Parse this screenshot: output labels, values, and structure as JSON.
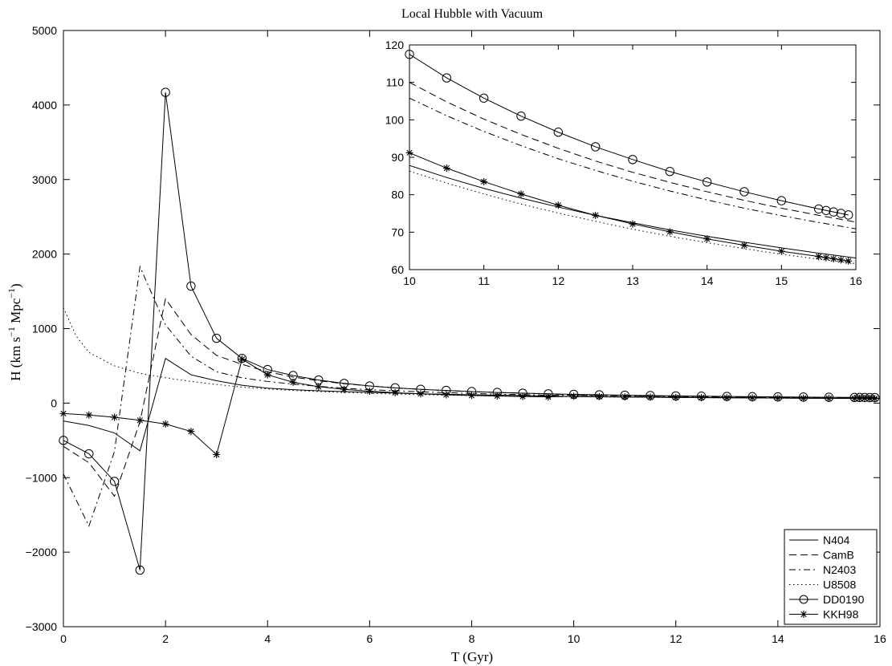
{
  "chart_data": [
    {
      "type": "line",
      "title": "Local Hubble with Vacuum",
      "xlabel": "T (Gyr)",
      "ylabel": "H (km s^-1 Mpc^-1)",
      "xlim": [
        0,
        16
      ],
      "ylim": [
        -3000,
        5000
      ],
      "xticks": [
        0,
        2,
        4,
        6,
        8,
        10,
        12,
        14,
        16
      ],
      "yticks": [
        -3000,
        -2000,
        -1000,
        0,
        1000,
        2000,
        3000,
        4000,
        5000
      ],
      "grid": false,
      "legend_position": "bottom-right",
      "series": [
        {
          "name": "N404",
          "style": "solid",
          "marker": "none",
          "x": [
            0,
            0.5,
            1,
            1.5,
            2,
            2.5,
            3,
            3.5,
            4,
            4.5,
            5,
            5.5,
            6,
            6.5,
            7,
            7.5,
            8,
            8.5,
            9,
            9.5,
            10,
            10.5,
            11,
            11.5,
            12,
            12.5,
            13,
            13.5,
            14,
            14.5,
            15,
            15.5,
            16
          ],
          "y": [
            -240,
            -300,
            -400,
            -640,
            600,
            380,
            300,
            240,
            200,
            180,
            165,
            155,
            145,
            135,
            125,
            118,
            112,
            106,
            101,
            96,
            88,
            85,
            82,
            79,
            76,
            74,
            72,
            70,
            68,
            66,
            65,
            63,
            62
          ]
        },
        {
          "name": "CamB",
          "style": "dashed",
          "marker": "none",
          "x": [
            0,
            0.5,
            1,
            1.5,
            2,
            2.5,
            3,
            3.5,
            4,
            4.5,
            5,
            5.5,
            6,
            6.5,
            7,
            7.5,
            8,
            8.5,
            9,
            9.5,
            10,
            10.5,
            11,
            11.5,
            12,
            12.5,
            13,
            13.5,
            14,
            14.5,
            15,
            15.5,
            16
          ],
          "y": [
            -580,
            -800,
            -1250,
            -250,
            1400,
            920,
            640,
            520,
            420,
            350,
            300,
            260,
            230,
            205,
            185,
            168,
            155,
            143,
            133,
            124,
            110,
            105,
            100,
            96,
            92,
            88,
            85,
            82,
            79,
            77,
            75,
            73,
            72
          ]
        },
        {
          "name": "N2403",
          "style": "dashdot",
          "marker": "none",
          "x": [
            0,
            0.5,
            1,
            1.5,
            2,
            2.5,
            3,
            3.5,
            4,
            4.5,
            5,
            5.5,
            6,
            6.5,
            7,
            7.5,
            8,
            8.5,
            9,
            9.5,
            10,
            10.5,
            11,
            11.5,
            12,
            12.5,
            13,
            13.5,
            14,
            14.5,
            15,
            15.5,
            16
          ],
          "y": [
            -950,
            -1650,
            -650,
            1830,
            1050,
            630,
            420,
            340,
            290,
            255,
            225,
            200,
            180,
            165,
            152,
            140,
            130,
            121,
            113,
            107,
            106,
            101,
            97,
            93,
            89,
            86,
            83,
            80,
            78,
            76,
            74,
            72,
            71
          ]
        },
        {
          "name": "U8508",
          "style": "dotted",
          "marker": "none",
          "x": [
            0,
            0.25,
            0.5,
            1,
            1.5,
            2,
            2.5,
            3,
            3.5,
            4,
            4.5,
            5,
            5.5,
            6,
            6.5,
            7,
            7.5,
            8,
            8.5,
            9,
            9.5,
            10,
            10.5,
            11,
            11.5,
            12,
            12.5,
            13,
            13.5,
            14,
            14.5,
            15,
            15.5,
            16
          ],
          "y": [
            1280,
            900,
            680,
            500,
            400,
            340,
            290,
            250,
            215,
            190,
            170,
            155,
            142,
            131,
            122,
            114,
            107,
            101,
            96,
            91,
            87,
            86,
            83,
            80,
            77,
            75,
            73,
            71,
            69,
            67,
            65,
            64,
            62,
            61
          ]
        },
        {
          "name": "DD0190",
          "style": "solid",
          "marker": "circle",
          "x": [
            0,
            0.5,
            1,
            1.5,
            2,
            2.5,
            3,
            3.5,
            4,
            4.5,
            5,
            5.5,
            6,
            6.5,
            7,
            7.5,
            8,
            8.5,
            9,
            9.5,
            10,
            10.5,
            11,
            11.5,
            12,
            12.5,
            13,
            13.5,
            14,
            14.5,
            15,
            15.5,
            15.6,
            15.7,
            15.8,
            15.9
          ],
          "y": [
            -500,
            -680,
            -1050,
            -2240,
            4170,
            1570,
            870,
            600,
            450,
            370,
            310,
            265,
            230,
            205,
            185,
            170,
            155,
            143,
            133,
            125,
            117.5,
            111.2,
            105.8,
            101,
            96.7,
            92.8,
            89.4,
            86.2,
            83.4,
            80.8,
            78.4,
            76.2,
            75.8,
            75.4,
            75,
            74.6
          ]
        },
        {
          "name": "KKH98",
          "style": "solid",
          "marker": "star",
          "x": [
            0,
            0.5,
            1,
            1.5,
            2,
            2.5,
            3,
            3.5,
            4,
            4.5,
            5,
            5.5,
            6,
            6.5,
            7,
            7.5,
            8,
            8.5,
            9,
            9.5,
            10,
            10.5,
            11,
            11.5,
            12,
            12.5,
            13,
            13.5,
            14,
            14.5,
            15,
            15.5,
            15.6,
            15.7,
            15.8,
            15.9
          ],
          "y": [
            -140,
            -160,
            -190,
            -230,
            -280,
            -380,
            -690,
            590,
            380,
            280,
            220,
            185,
            160,
            140,
            125,
            112,
            102,
            95,
            89,
            84,
            91.2,
            87.1,
            83.5,
            80.2,
            77.2,
            74.5,
            72.2,
            70.1,
            68.2,
            66.5,
            64.9,
            63.5,
            63.2,
            62.9,
            62.6,
            62.3
          ]
        }
      ]
    },
    {
      "type": "line",
      "title": "",
      "xlim": [
        10,
        16
      ],
      "ylim": [
        60,
        120
      ],
      "xticks": [
        10,
        11,
        12,
        13,
        14,
        15,
        16
      ],
      "yticks": [
        60,
        70,
        80,
        90,
        100,
        110,
        120
      ],
      "grid": false,
      "series": [
        {
          "name": "N404",
          "style": "solid",
          "marker": "none",
          "x": [
            10,
            10.5,
            11,
            11.5,
            12,
            12.5,
            13,
            13.5,
            14,
            14.5,
            15,
            15.5,
            16
          ],
          "y": [
            87.8,
            84.6,
            81.7,
            79.1,
            76.7,
            74.5,
            72.5,
            70.6,
            68.9,
            67.3,
            65.8,
            64.4,
            63.1
          ]
        },
        {
          "name": "CamB",
          "style": "dashed",
          "marker": "none",
          "x": [
            10,
            10.5,
            11,
            11.5,
            12,
            12.5,
            13,
            13.5,
            14,
            14.5,
            15,
            15.5,
            16
          ],
          "y": [
            110,
            104.8,
            100.2,
            96.1,
            92.4,
            89,
            86,
            83.3,
            80.8,
            78.5,
            76.4,
            74.5,
            72.7
          ]
        },
        {
          "name": "N2403",
          "style": "dashdot",
          "marker": "none",
          "x": [
            10,
            10.5,
            11,
            11.5,
            12,
            12.5,
            13,
            13.5,
            14,
            14.5,
            15,
            15.5,
            16
          ],
          "y": [
            105.8,
            101.1,
            96.9,
            93.1,
            89.6,
            86.5,
            83.6,
            81,
            78.6,
            76.4,
            74.4,
            72.6,
            70.9
          ]
        },
        {
          "name": "U8508",
          "style": "dotted",
          "marker": "none",
          "x": [
            10,
            10.5,
            11,
            11.5,
            12,
            12.5,
            13,
            13.5,
            14,
            14.5,
            15,
            15.5,
            16
          ],
          "y": [
            86.3,
            83.1,
            80.2,
            77.5,
            75.1,
            72.9,
            70.8,
            68.9,
            67.2,
            65.6,
            64.1,
            62.8,
            61.6
          ]
        },
        {
          "name": "DD0190",
          "style": "solid",
          "marker": "circle",
          "x": [
            10,
            10.5,
            11,
            11.5,
            12,
            12.5,
            13,
            13.5,
            14,
            14.5,
            15,
            15.5,
            15.6,
            15.7,
            15.8,
            15.9
          ],
          "y": [
            117.5,
            111.2,
            105.8,
            101,
            96.7,
            92.8,
            89.4,
            86.2,
            83.4,
            80.8,
            78.4,
            76.2,
            75.8,
            75.4,
            75,
            74.6
          ]
        },
        {
          "name": "KKH98",
          "style": "solid",
          "marker": "star",
          "x": [
            10,
            10.5,
            11,
            11.5,
            12,
            12.5,
            13,
            13.5,
            14,
            14.5,
            15,
            15.5,
            15.6,
            15.7,
            15.8,
            15.9
          ],
          "y": [
            91.2,
            87.1,
            83.5,
            80.2,
            77.2,
            74.5,
            72.2,
            70.1,
            68.2,
            66.5,
            64.9,
            63.5,
            63.2,
            62.9,
            62.6,
            62.3
          ]
        }
      ]
    }
  ]
}
